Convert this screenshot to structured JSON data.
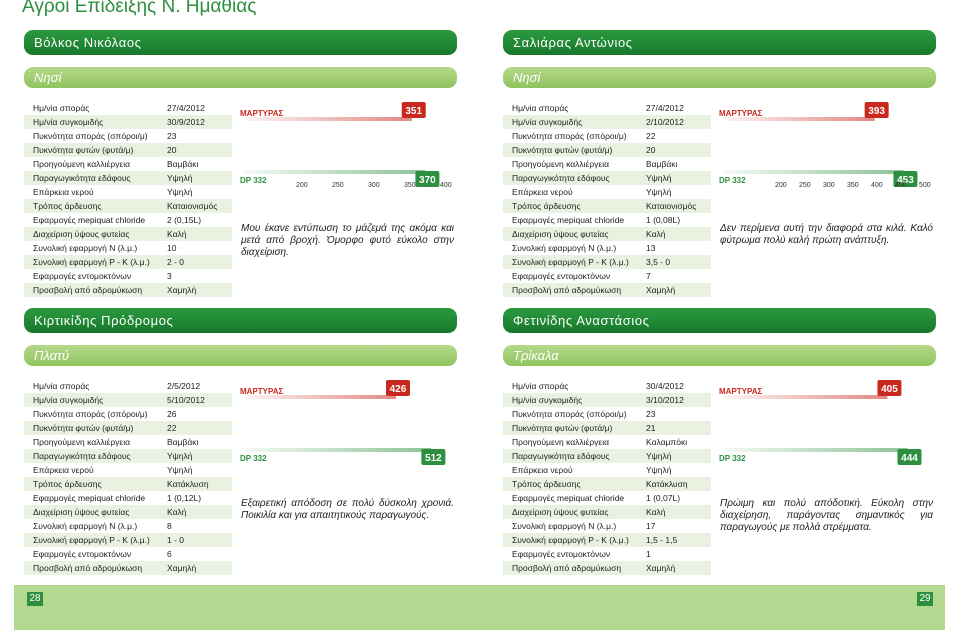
{
  "page_title": "Αγροί Επίδειξης Ν. Ημαθίας",
  "chart_labels": {
    "brand": "ΜΑΡΤΥΡΑΣ",
    "product": "DP 332"
  },
  "axis_ticks": [
    "200",
    "250",
    "300",
    "350",
    "400",
    "450",
    "500"
  ],
  "row_labels": [
    "Ημ/νία σποράς",
    "Ημ/νία συγκομιδής",
    "Πυκνότητα σποράς (σπόροι/μ)",
    "Πυκνότητα φυτών (φυτά/μ)",
    "Προηγούμενη καλλιέργεια",
    "Παραγωγικότητα εδάφους",
    "Επάρκεια νερού",
    "Τρόπος άρδευσης",
    "Εφαρμογές mepiquat chloride",
    "Διαχείριση ύψους φυτείας",
    "Συνολική εφαρμογή Ν (λ.μ.)",
    "Συνολική εφαρμογή P - K (λ.μ.)",
    "Εφαρμογές εντομοκτόνων",
    "Προσβολή από αδρομύκωση"
  ],
  "panels": [
    {
      "farmer": "Βόλκος Νικόλαος",
      "location": "Νησί",
      "values": [
        "27/4/2012",
        "30/9/2012",
        "23",
        "20",
        "Βαμβάκι",
        "Υψηλή",
        "Υψηλή",
        "Καταιονισμός",
        "2 (0,15L)",
        "Καλή",
        "10",
        "2 - 0",
        "3",
        "Χαμηλή"
      ],
      "comment": "Μου έκανε εντύπωση το μάζεμά της ακόμα και μετά από βροχή. Όμορφο φυτό εύκολο στην διαχείριση.",
      "chart_data": {
        "type": "bar",
        "categories": [
          "ΜΑΡΤΥΡΑΣ",
          "DP 332"
        ],
        "values": [
          351,
          370
        ],
        "xlim": [
          200,
          400
        ],
        "ticks": [
          "200",
          "250",
          "300",
          "350",
          "400"
        ]
      }
    },
    {
      "farmer": "Σαλιάρας Αντώνιος",
      "location": "Νησί",
      "values": [
        "27/4/2012",
        "2/10/2012",
        "22",
        "20",
        "Βαμβάκι",
        "Υψηλή",
        "Υψηλή",
        "Καταιονισμός",
        "1 (0,08L)",
        "Καλή",
        "13",
        "3,5 - 0",
        "7",
        "Χαμηλή"
      ],
      "comment": "Δεν περίμενα αυτή την διαφορά στα κιλά. Καλό φύτρωμα πολύ καλή πρώτη ανάπτυξη.",
      "chart_data": {
        "type": "bar",
        "categories": [
          "ΜΑΡΤΥΡΑΣ",
          "DP 332"
        ],
        "values": [
          393,
          453
        ],
        "xlim": [
          200,
          500
        ],
        "ticks": [
          "200",
          "250",
          "300",
          "350",
          "400",
          "450",
          "500"
        ]
      }
    },
    {
      "farmer": "Κιρτικίδης Πρόδρομος",
      "location": "Πλατύ",
      "values": [
        "2/5/2012",
        "5/10/2012",
        "26",
        "22",
        "Βαμβάκι",
        "Υψηλή",
        "Υψηλή",
        "Κατάκλυση",
        "1 (0,12L)",
        "Καλή",
        "8",
        "1 - 0",
        "6",
        "Χαμηλή"
      ],
      "comment": "Εξαιρετική απόδοση σε πολύ δύσκολη χρονιά. Ποικιλία και για απαιτητικούς παραγωγούς.",
      "chart_data": {
        "type": "bar",
        "categories": [
          "ΜΑΡΤΥΡΑΣ",
          "DP 332"
        ],
        "values": [
          426,
          512
        ],
        "xlim": [
          200,
          550
        ],
        "ticks": []
      }
    },
    {
      "farmer": "Φετινίδης Αναστάσιος",
      "location": "Τρίκαλα",
      "values": [
        "30/4/2012",
        "3/10/2012",
        "23",
        "21",
        "Καλαμπόκι",
        "Υψηλή",
        "Υψηλή",
        "Κατάκλυση",
        "1 (0,07L)",
        "Καλή",
        "17",
        "1,5 - 1,5",
        "1",
        "Χαμηλή"
      ],
      "comment": "Πρώιμη και πολύ απόδοτική. Εύκολη στην διαχείρηση, παράγοντας σημαντικός για παραγωγούς με πολλά στρέμματα.",
      "chart_data": {
        "type": "bar",
        "categories": [
          "ΜΑΡΤΥΡΑΣ",
          "DP 332"
        ],
        "values": [
          405,
          444
        ],
        "xlim": [
          200,
          480
        ],
        "ticks": []
      }
    }
  ],
  "page_numbers": {
    "left": "28",
    "right": "29"
  }
}
